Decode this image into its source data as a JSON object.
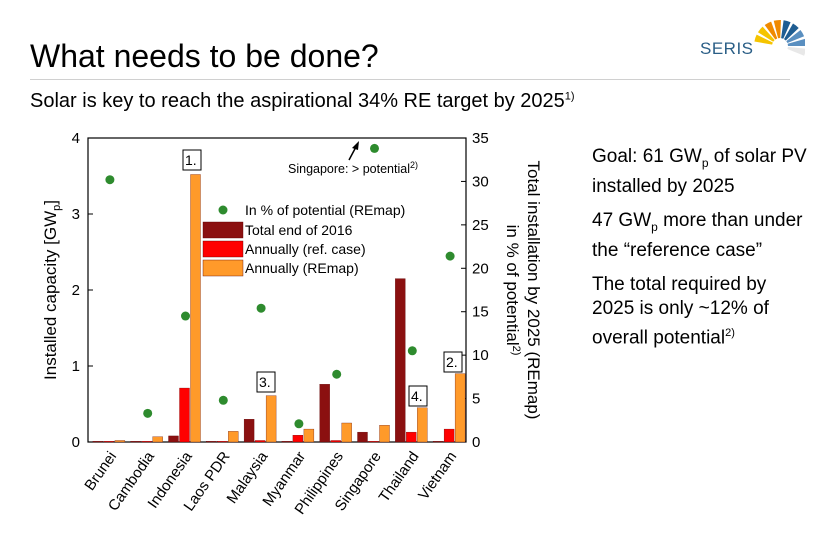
{
  "slide": {
    "title": "What needs to be done?",
    "subtitle": "Solar is key to reach the aspirational 34% RE target by 2025",
    "subtitle_note": "1)",
    "logo_text": "SERIS",
    "logo_colors": [
      "#f5c400",
      "#f08a00",
      "#1f5d92",
      "#5a8fc0",
      "#e8e8e8"
    ]
  },
  "side_text": {
    "goal_prefix": "Goal: 61 GW",
    "goal_sub": "p",
    "goal_suffix": " of solar PV installed by 2025",
    "more_prefix": "47 GW",
    "more_sub": "p",
    "more_suffix": " more than under the “reference case”",
    "total_text": "The total required by 2025 is only ~12% of overall potential",
    "total_note": "2)"
  },
  "chart_data": {
    "type": "bar",
    "categories": [
      "Brunei",
      "Cambodia",
      "Indonesia",
      "Laos PDR",
      "Malaysia",
      "Myanmar",
      "Philippines",
      "Singapore",
      "Thailand",
      "Vietnam"
    ],
    "ylabel": "Installed capacity [GW",
    "ylabel_sub": "p",
    "ylabel_end": "]",
    "y2label_line1": "Total installation by 2025 (REmap)",
    "y2label_line2": "in % of potential",
    "y2label_note": "2)",
    "ylim": [
      0,
      4
    ],
    "y2lim": [
      0,
      35
    ],
    "yticks": [
      "0",
      "1",
      "2",
      "3",
      "4"
    ],
    "y2ticks": [
      "0",
      "5",
      "10",
      "15",
      "20",
      "25",
      "30",
      "35"
    ],
    "series": [
      {
        "name": "Total end of 2016",
        "color": "#8b1010",
        "values": [
          0.01,
          0.01,
          0.08,
          0.01,
          0.3,
          0.01,
          0.76,
          0.13,
          2.15,
          0.01
        ]
      },
      {
        "name": "Annually (ref. case)",
        "color": "#ff0000",
        "values": [
          0.01,
          0.01,
          0.71,
          0.01,
          0.02,
          0.09,
          0.02,
          0.01,
          0.13,
          0.17
        ]
      },
      {
        "name": "Annually (REmap)",
        "color": "#ff9a2a",
        "values": [
          0.02,
          0.07,
          3.52,
          0.14,
          0.61,
          0.17,
          0.25,
          0.22,
          0.45,
          0.9
        ]
      }
    ],
    "points": {
      "name": "In % of potential (REmap)",
      "color": "#2e8b2e",
      "values": [
        30.2,
        3.3,
        14.5,
        4.8,
        15.4,
        2.1,
        7.8,
        33.8,
        10.5,
        21.4
      ]
    },
    "annotations": {
      "indonesia": "1.",
      "vietnam": "2.",
      "malaysia": "3.",
      "thailand": "4.",
      "singapore": "Singapore: > potential",
      "singapore_note": "2)"
    }
  }
}
